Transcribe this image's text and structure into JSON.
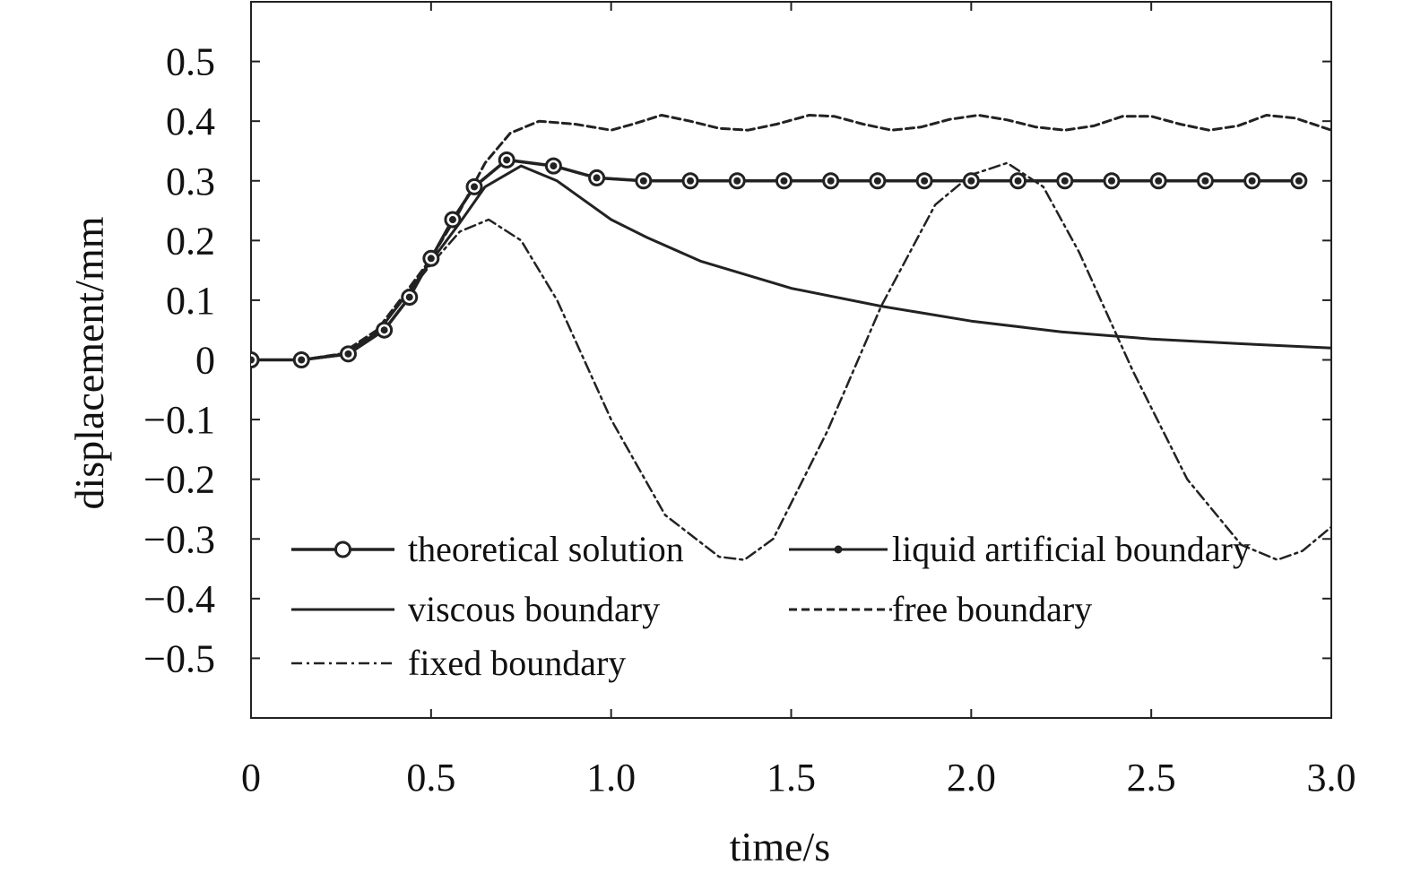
{
  "chart_data": {
    "type": "line",
    "title": "",
    "xlabel": "time/s",
    "ylabel": "displacement/mm",
    "xlim": [
      0,
      3.0
    ],
    "ylim": [
      -0.6,
      0.6
    ],
    "x_ticks": [
      0,
      0.5,
      1.0,
      1.5,
      2.0,
      2.5,
      3.0
    ],
    "x_tick_labels": [
      "0",
      "0.5",
      "1.0",
      "1.5",
      "2.0",
      "2.5",
      "3.0"
    ],
    "y_ticks": [
      0.5,
      0.4,
      0.3,
      0.2,
      0.1,
      0,
      -0.1,
      -0.2,
      -0.3,
      -0.4,
      -0.5
    ],
    "y_tick_labels": [
      "0.5",
      "0.4",
      "0.3",
      "0.2",
      "0.1",
      "0",
      "−0.1",
      "−0.2",
      "−0.3",
      "−0.4",
      "−0.5"
    ],
    "grid": false,
    "legend_position": "bottom",
    "series": [
      {
        "name": "theoretical solution",
        "style": "solid-circle-marker",
        "color": "#222222",
        "x": [
          0,
          0.14,
          0.27,
          0.37,
          0.44,
          0.5,
          0.56,
          0.62,
          0.71,
          0.84,
          0.96,
          1.09,
          1.22,
          1.35,
          1.48,
          1.61,
          1.74,
          1.87,
          2.0,
          2.13,
          2.26,
          2.39,
          2.52,
          2.65,
          2.78,
          2.91
        ],
        "y": [
          0,
          0,
          0.01,
          0.05,
          0.105,
          0.17,
          0.235,
          0.29,
          0.335,
          0.325,
          0.305,
          0.3,
          0.3,
          0.3,
          0.3,
          0.3,
          0.3,
          0.3,
          0.3,
          0.3,
          0.3,
          0.3,
          0.3,
          0.3,
          0.3,
          0.3
        ]
      },
      {
        "name": "liquid artificial boundary",
        "style": "solid-dot-marker",
        "color": "#222222",
        "x": [
          0,
          0.14,
          0.27,
          0.37,
          0.44,
          0.5,
          0.56,
          0.62,
          0.71,
          0.84,
          0.96,
          1.09,
          1.22,
          1.35,
          1.48,
          1.61,
          1.74,
          1.87,
          2.0,
          2.13,
          2.26,
          2.39,
          2.52,
          2.65,
          2.78,
          2.91
        ],
        "y": [
          0,
          0,
          0.01,
          0.05,
          0.105,
          0.17,
          0.235,
          0.29,
          0.335,
          0.325,
          0.305,
          0.3,
          0.3,
          0.3,
          0.3,
          0.3,
          0.3,
          0.3,
          0.3,
          0.3,
          0.3,
          0.3,
          0.3,
          0.3,
          0.3,
          0.3
        ]
      },
      {
        "name": "viscous boundary",
        "style": "solid",
        "color": "#222222",
        "x": [
          0,
          0.14,
          0.25,
          0.35,
          0.42,
          0.5,
          0.58,
          0.65,
          0.75,
          0.85,
          1.0,
          1.1,
          1.25,
          1.5,
          1.75,
          2.0,
          2.25,
          2.5,
          2.75,
          3.0
        ],
        "y": [
          0,
          0,
          0.008,
          0.045,
          0.1,
          0.165,
          0.23,
          0.29,
          0.325,
          0.3,
          0.235,
          0.205,
          0.165,
          0.12,
          0.09,
          0.065,
          0.047,
          0.035,
          0.027,
          0.02
        ]
      },
      {
        "name": "free boundary",
        "style": "dashed",
        "color": "#222222",
        "x": [
          0,
          0.14,
          0.25,
          0.35,
          0.42,
          0.5,
          0.58,
          0.65,
          0.72,
          0.8,
          0.9,
          1.0,
          1.06,
          1.14,
          1.22,
          1.3,
          1.38,
          1.46,
          1.55,
          1.62,
          1.7,
          1.78,
          1.86,
          1.94,
          2.02,
          2.1,
          2.18,
          2.26,
          2.34,
          2.42,
          2.5,
          2.58,
          2.66,
          2.74,
          2.82,
          2.9,
          3.0
        ],
        "y": [
          0,
          0,
          0.01,
          0.05,
          0.105,
          0.17,
          0.25,
          0.33,
          0.38,
          0.4,
          0.395,
          0.385,
          0.395,
          0.41,
          0.4,
          0.388,
          0.385,
          0.395,
          0.41,
          0.408,
          0.395,
          0.385,
          0.39,
          0.403,
          0.41,
          0.402,
          0.39,
          0.385,
          0.392,
          0.408,
          0.408,
          0.395,
          0.385,
          0.392,
          0.41,
          0.405,
          0.385
        ]
      },
      {
        "name": "fixed boundary",
        "style": "dash-dot",
        "color": "#222222",
        "x": [
          0,
          0.14,
          0.25,
          0.35,
          0.42,
          0.5,
          0.58,
          0.66,
          0.75,
          0.85,
          1.0,
          1.15,
          1.3,
          1.37,
          1.45,
          1.6,
          1.75,
          1.9,
          2.0,
          2.1,
          2.2,
          2.3,
          2.45,
          2.6,
          2.75,
          2.85,
          2.92,
          3.0
        ],
        "y": [
          0,
          0,
          0.01,
          0.045,
          0.1,
          0.16,
          0.215,
          0.235,
          0.2,
          0.1,
          -0.1,
          -0.26,
          -0.33,
          -0.335,
          -0.3,
          -0.12,
          0.09,
          0.26,
          0.31,
          0.33,
          0.29,
          0.18,
          -0.02,
          -0.2,
          -0.31,
          -0.335,
          -0.32,
          -0.28
        ]
      }
    ]
  }
}
